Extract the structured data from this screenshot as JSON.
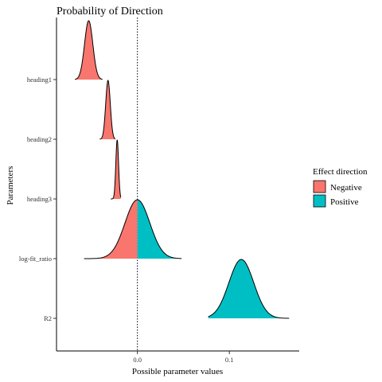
{
  "chart_data": {
    "type": "area",
    "title": "Probability of Direction",
    "xlabel": "Possible parameter values",
    "ylabel": "Parameters",
    "xlim": [
      -0.088,
      0.176
    ],
    "x_ticks": [
      0.0,
      0.1
    ],
    "x_tick_labels": [
      "0.0",
      "0.1"
    ],
    "reference_line_x": 0,
    "grid": false,
    "legend": {
      "title": "Effect direction",
      "placement": "right",
      "entries": [
        {
          "label": "Negative",
          "color": "#F8766D"
        },
        {
          "label": "Positive",
          "color": "#00BFC4"
        }
      ]
    },
    "categories": [
      "heading1",
      "heading2",
      "heading3",
      "log-fit_ratio",
      "R2"
    ],
    "series": [
      {
        "name": "heading1",
        "center": -0.053,
        "spread": 0.0045,
        "min": -0.068,
        "max": -0.038
      },
      {
        "name": "heading2",
        "center": -0.032,
        "spread": 0.0025,
        "min": -0.041,
        "max": -0.024
      },
      {
        "name": "heading3",
        "center": -0.022,
        "spread": 0.0015,
        "min": -0.029,
        "max": -0.018
      },
      {
        "name": "log-fit_ratio",
        "center": 0.0,
        "spread": 0.0135,
        "min": -0.058,
        "max": 0.048
      },
      {
        "name": "R2",
        "center": 0.113,
        "spread": 0.0135,
        "min": 0.077,
        "max": 0.165
      }
    ]
  }
}
